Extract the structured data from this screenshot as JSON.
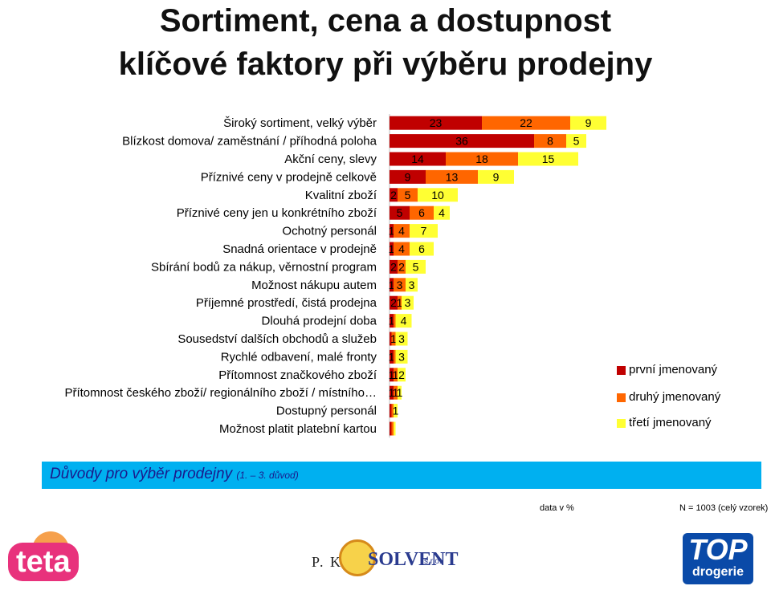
{
  "title_line1": "Sortiment, cena a dostupnost",
  "title_line2": "klíčové faktory při výběru prodejny",
  "banner_main": "Důvody pro výběr prodejny ",
  "banner_sub": "(1. – 3. důvod)",
  "footer_left": "data v %",
  "footer_right": "N = 1003 (celý vzorek)",
  "logos": {
    "teta": "teta",
    "pk": "P. K.",
    "solvent": "SOLVENT",
    "sro": "s.r.o.",
    "top_big": "TOP",
    "top_small": "drogerie"
  },
  "colors": {
    "first": "#c00000",
    "second": "#ff6600",
    "third": "#ffff33",
    "banner": "#00b0f0"
  },
  "chart_data": {
    "type": "bar",
    "orientation": "horizontal",
    "stacked": true,
    "categories": [
      "Široký sortiment, velký výběr",
      "Blízkost domova/ zaměstnání / příhodná poloha",
      "Akční ceny, slevy",
      "Příznivé ceny v prodejně celkově",
      "Kvalitní zboží",
      "Příznivé ceny jen u konkrétního zboží",
      "Ochotný personál",
      "Snadná orientace v prodejně",
      "Sbírání bodů za nákup, věrnostní program",
      "Možnost nákupu autem",
      "Příjemné prostředí, čistá prodejna",
      "Dlouhá prodejní doba",
      "Sousedství dalších obchodů a služeb",
      "Rychlé odbavení, malé fronty",
      "Přítomnost značkového zboží",
      "Přítomnost českého zboží/ regionálního zboží / místního…",
      "Dostupný personál",
      "Možnost platit platební kartou"
    ],
    "series": [
      {
        "name": "první jmenovaný",
        "values": [
          23,
          36,
          14,
          9,
          2,
          5,
          1,
          1,
          2,
          1,
          2,
          1,
          0.5,
          1,
          1,
          1,
          0.5,
          0.5
        ]
      },
      {
        "name": "druhý jmenovaný",
        "values": [
          22,
          8,
          18,
          13,
          5,
          6,
          4,
          4,
          2,
          3,
          1,
          0.5,
          1,
          0.5,
          1,
          1,
          0.5,
          0.5
        ]
      },
      {
        "name": "třetí jmenovaný",
        "values": [
          9,
          5,
          15,
          9,
          10,
          4,
          7,
          6,
          5,
          3,
          3,
          4,
          3,
          3,
          2,
          1,
          1,
          0.5
        ]
      }
    ],
    "labels": [
      [
        "23",
        "22",
        "9"
      ],
      [
        "36",
        "8",
        "5"
      ],
      [
        "14",
        "18",
        "15"
      ],
      [
        "9",
        "13",
        "9"
      ],
      [
        "2",
        "5",
        "10"
      ],
      [
        "5",
        "6",
        "4"
      ],
      [
        "1",
        "4",
        "7"
      ],
      [
        "1",
        "4",
        "6"
      ],
      [
        "2",
        "2",
        "5"
      ],
      [
        "1",
        "3",
        "3"
      ],
      [
        "2",
        "1",
        "3"
      ],
      [
        "1",
        "",
        "4"
      ],
      [
        "",
        "1",
        "3"
      ],
      [
        "1",
        "",
        "3"
      ],
      [
        "1",
        "1",
        "2"
      ],
      [
        "1",
        "1",
        "1"
      ],
      [
        "",
        "",
        "1"
      ],
      [
        "",
        "",
        ""
      ]
    ],
    "legend_position": "right",
    "xlim": [
      0,
      90
    ]
  }
}
